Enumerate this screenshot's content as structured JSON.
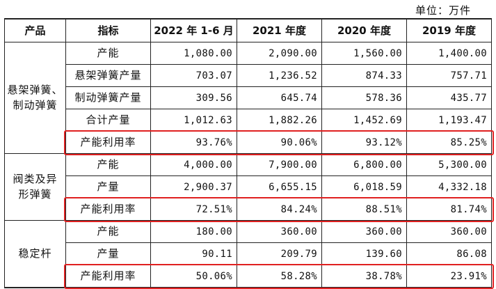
{
  "unit_label": "单位：万件",
  "headers": [
    "产品",
    "指标",
    "2022 年 1-6 月",
    "2021 年度",
    "2020 年度",
    "2019 年度"
  ],
  "groups": [
    {
      "product": "悬架弹簧、制动弹簧",
      "product_lines": [
        "悬架弹簧、",
        "制动弹簧"
      ],
      "rows": [
        {
          "indicator": "产能",
          "values": [
            "1,080.00",
            "2,090.00",
            "1,560.00",
            "1,400.00"
          ]
        },
        {
          "indicator": "悬架弹簧产量",
          "values": [
            "703.07",
            "1,236.52",
            "874.33",
            "757.71"
          ]
        },
        {
          "indicator": "制动弹簧产量",
          "values": [
            "309.56",
            "645.74",
            "578.36",
            "435.77"
          ]
        },
        {
          "indicator": "合计产量",
          "values": [
            "1,012.63",
            "1,882.26",
            "1,452.69",
            "1,193.47"
          ]
        },
        {
          "indicator": "产能利用率",
          "values": [
            "93.76%",
            "90.06%",
            "93.12%",
            "85.25%"
          ],
          "highlight": true
        }
      ]
    },
    {
      "product": "阀类及异形弹簧",
      "product_lines": [
        "阀类及异",
        "形弹簧"
      ],
      "rows": [
        {
          "indicator": "产能",
          "values": [
            "4,000.00",
            "7,900.00",
            "6,800.00",
            "5,300.00"
          ]
        },
        {
          "indicator": "产量",
          "values": [
            "2,900.37",
            "6,655.15",
            "6,018.59",
            "4,332.18"
          ]
        },
        {
          "indicator": "产能利用率",
          "values": [
            "72.51%",
            "84.24%",
            "88.51%",
            "81.74%"
          ],
          "highlight": true
        }
      ]
    },
    {
      "product": "稳定杆",
      "product_lines": [
        "稳定杆"
      ],
      "rows": [
        {
          "indicator": "产能",
          "values": [
            "180.00",
            "360.00",
            "360.00",
            "360.00"
          ]
        },
        {
          "indicator": "产量",
          "values": [
            "90.11",
            "209.79",
            "139.60",
            "86.08"
          ]
        },
        {
          "indicator": "产能利用率",
          "values": [
            "50.06%",
            "58.28%",
            "38.78%",
            "23.91%"
          ],
          "highlight": true
        }
      ]
    }
  ],
  "highlight_color": "#e02020"
}
